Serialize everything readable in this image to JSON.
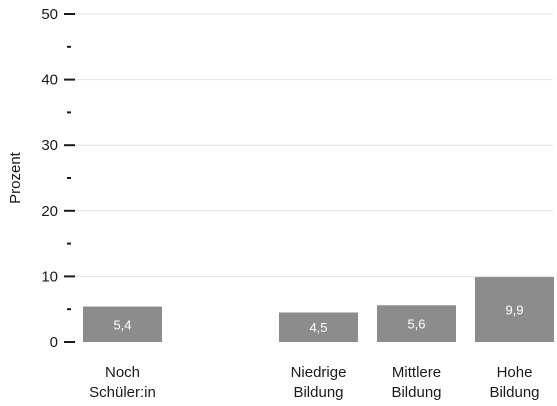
{
  "chart_data": {
    "type": "bar",
    "categories": [
      [
        "Noch",
        "Schüler:in"
      ],
      [
        "Niedrige",
        "Bildung"
      ],
      [
        "Mittlere",
        "Bildung"
      ],
      [
        "Hohe",
        "Bildung"
      ]
    ],
    "values": [
      5.4,
      4.5,
      5.6,
      9.9
    ],
    "value_labels": [
      "5,4",
      "4,5",
      "5,6",
      "9,9"
    ],
    "ylabel": "Prozent",
    "ylim": [
      0,
      50
    ],
    "major_ticks": [
      0,
      10,
      20,
      30,
      40,
      50
    ],
    "tick_labels": [
      "0",
      "10",
      "20",
      "30",
      "40",
      "50"
    ],
    "minor_ticks": [
      5,
      15,
      25,
      35,
      45
    ],
    "grid": true,
    "colors": {
      "bar": "#8c8c8c",
      "grid": "#e3e3e3",
      "axis": "#1a1a1a",
      "label": "#ffffff"
    }
  }
}
